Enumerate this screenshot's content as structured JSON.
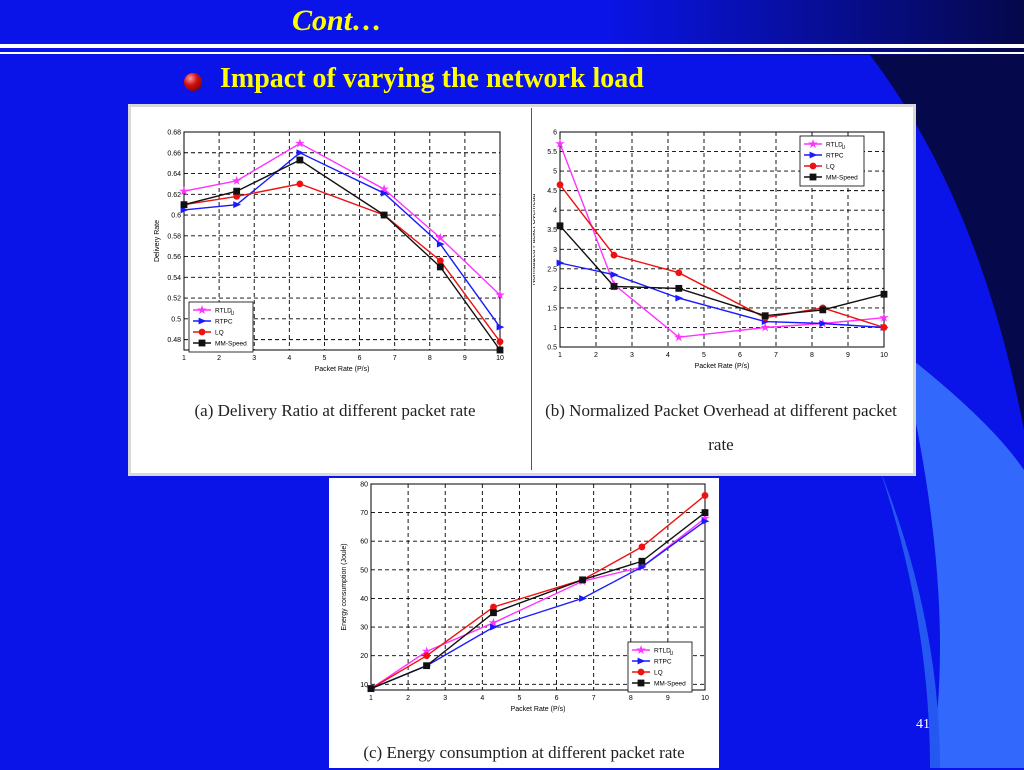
{
  "slide": {
    "title": "Cont…",
    "bullet": "Impact of varying the network load",
    "page_number": "41"
  },
  "colors": {
    "background": "#0a14e8",
    "title_text": "#ffff00",
    "RTLDu": "#ff33ff",
    "RTPC": "#1a1aff",
    "LQ": "#ee1111",
    "MM-Speed": "#111111"
  },
  "chart_data": [
    {
      "id": "a",
      "type": "line",
      "caption": "(a) Delivery Ratio at different packet rate",
      "xlabel": "Packet Rate (P/s)",
      "ylabel": "Delivery Rate",
      "xlim": [
        1,
        10
      ],
      "ylim": [
        0.47,
        0.68
      ],
      "xticks": [
        1,
        2,
        3,
        4,
        5,
        6,
        7,
        8,
        9,
        10
      ],
      "yticks": [
        0.48,
        0.5,
        0.52,
        0.54,
        0.56,
        0.58,
        0.6,
        0.62,
        0.64,
        0.66,
        0.68
      ],
      "ytick_labels": [
        "0.48",
        "0.5",
        "0.52",
        "0.54",
        "0.56",
        "0.58",
        "0.6",
        "0.62",
        "0.64",
        "0.66",
        "0.68"
      ],
      "grid": true,
      "legend_position": "bottom-left",
      "legend_labels": [
        "RTLD",
        "RTPC",
        "LQ",
        "MM-Speed"
      ],
      "series": [
        {
          "name": "RTLDu",
          "color": "#ff33ff",
          "marker": "star",
          "x": [
            1,
            2.5,
            4.3,
            6.7,
            8.3,
            10
          ],
          "y": [
            0.623,
            0.633,
            0.669,
            0.625,
            0.578,
            0.523
          ]
        },
        {
          "name": "RTPC",
          "color": "#1a1aff",
          "marker": "triangle",
          "x": [
            1,
            2.5,
            4.3,
            6.7,
            8.3,
            10
          ],
          "y": [
            0.605,
            0.61,
            0.66,
            0.621,
            0.572,
            0.492
          ]
        },
        {
          "name": "LQ",
          "color": "#ee1111",
          "marker": "circle",
          "x": [
            1,
            2.5,
            4.3,
            6.7,
            8.3,
            10
          ],
          "y": [
            0.61,
            0.618,
            0.63,
            0.6,
            0.556,
            0.478
          ]
        },
        {
          "name": "MM-Speed",
          "color": "#111111",
          "marker": "square",
          "x": [
            1,
            2.5,
            4.3,
            6.7,
            8.3,
            10
          ],
          "y": [
            0.61,
            0.623,
            0.653,
            0.6,
            0.55,
            0.47
          ]
        }
      ]
    },
    {
      "id": "b",
      "type": "line",
      "caption": "(b) Normalized Packet Overhead at different packet rate",
      "xlabel": "Packet Rate (P/s)",
      "ylabel": "Normalized Packet Overhead",
      "xlim": [
        1,
        10
      ],
      "ylim": [
        0.5,
        6
      ],
      "xticks": [
        1,
        2,
        3,
        4,
        5,
        6,
        7,
        8,
        9,
        10
      ],
      "yticks": [
        0.5,
        1,
        1.5,
        2,
        2.5,
        3,
        3.5,
        4,
        4.5,
        5,
        5.5,
        6
      ],
      "ytick_labels": [
        "0.5",
        "1",
        "1.5",
        "2",
        "2.5",
        "3",
        "3.5",
        "4",
        "4.5",
        "5",
        "5.5",
        "6"
      ],
      "grid": true,
      "legend_position": "top-right",
      "legend_labels": [
        "RTLD",
        "RTPC",
        "LQ",
        "MM-Speed"
      ],
      "series": [
        {
          "name": "RTLDu",
          "color": "#ff33ff",
          "marker": "star",
          "x": [
            1,
            2.5,
            4.3,
            6.7,
            8.3,
            10
          ],
          "y": [
            5.7,
            2.1,
            0.75,
            1.0,
            1.1,
            1.25
          ]
        },
        {
          "name": "RTPC",
          "color": "#1a1aff",
          "marker": "triangle",
          "x": [
            1,
            2.5,
            4.3,
            6.7,
            8.3,
            10
          ],
          "y": [
            2.65,
            2.35,
            1.75,
            1.15,
            1.1,
            1.0
          ]
        },
        {
          "name": "LQ",
          "color": "#ee1111",
          "marker": "circle",
          "x": [
            1,
            2.5,
            4.3,
            6.7,
            8.3,
            10
          ],
          "y": [
            4.65,
            2.85,
            2.4,
            1.25,
            1.5,
            1.0
          ]
        },
        {
          "name": "MM-Speed",
          "color": "#111111",
          "marker": "square",
          "x": [
            1,
            2.5,
            4.3,
            6.7,
            8.3,
            10
          ],
          "y": [
            3.6,
            2.05,
            2.0,
            1.3,
            1.45,
            1.85
          ]
        }
      ]
    },
    {
      "id": "c",
      "type": "line",
      "caption": "(c) Energy consumption at different packet rate",
      "xlabel": "Packet Rate (P/s)",
      "ylabel": "Energy consumption (Joule)",
      "xlim": [
        1,
        10
      ],
      "ylim": [
        8,
        80
      ],
      "xticks": [
        1,
        2,
        3,
        4,
        5,
        6,
        7,
        8,
        9,
        10
      ],
      "yticks": [
        10,
        20,
        30,
        40,
        50,
        60,
        70,
        80
      ],
      "ytick_labels": [
        "10",
        "20",
        "30",
        "40",
        "50",
        "60",
        "70",
        "80"
      ],
      "grid": true,
      "legend_position": "bottom-right",
      "legend_labels": [
        "RTLD",
        "RTPC",
        "LQ",
        "MM-Speed"
      ],
      "series": [
        {
          "name": "RTLDu",
          "color": "#ff33ff",
          "marker": "star",
          "x": [
            1,
            2.5,
            4.3,
            6.7,
            8.3,
            10
          ],
          "y": [
            8.5,
            21.5,
            31.5,
            46,
            51,
            68
          ]
        },
        {
          "name": "RTPC",
          "color": "#1a1aff",
          "marker": "triangle",
          "x": [
            1,
            2.5,
            4.3,
            6.7,
            8.3,
            10
          ],
          "y": [
            8.5,
            16.5,
            30,
            40,
            51,
            67
          ]
        },
        {
          "name": "LQ",
          "color": "#ee1111",
          "marker": "circle",
          "x": [
            1,
            2.5,
            4.3,
            6.7,
            8.3,
            10
          ],
          "y": [
            8.5,
            20,
            37,
            46.5,
            58,
            76
          ]
        },
        {
          "name": "MM-Speed",
          "color": "#111111",
          "marker": "square",
          "x": [
            1,
            2.5,
            4.3,
            6.7,
            8.3,
            10
          ],
          "y": [
            8.5,
            16.5,
            35,
            46.5,
            53,
            70
          ]
        }
      ]
    }
  ]
}
